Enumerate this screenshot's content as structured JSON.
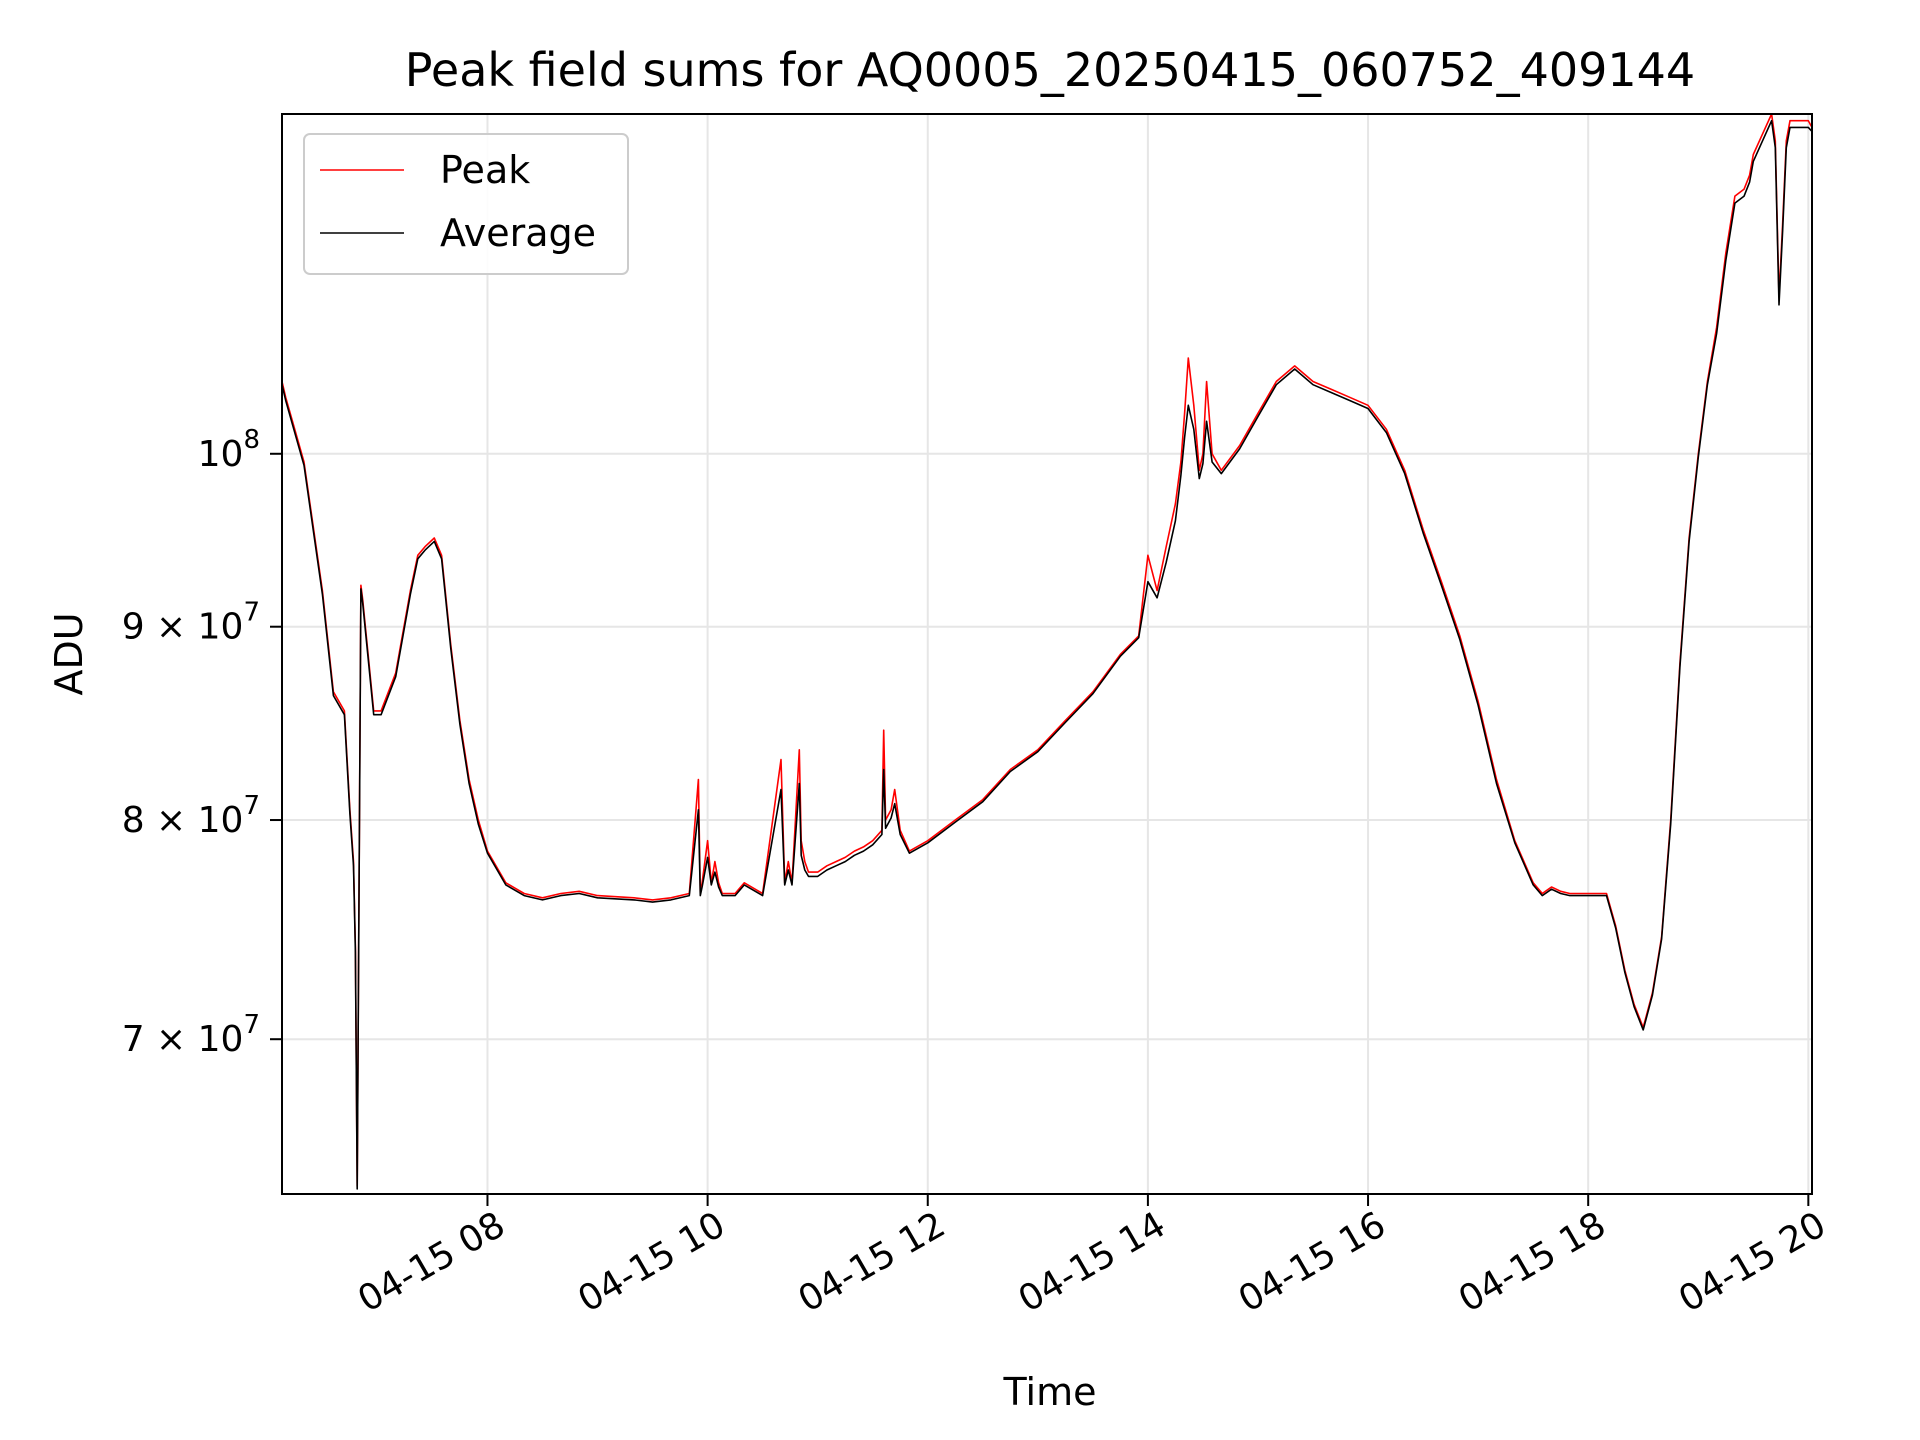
{
  "chart_data": {
    "type": "line",
    "title": "Peak field sums for AQ0005_20250415_060752_409144",
    "xlabel": "Time",
    "ylabel": "ADU",
    "y_scale": "log",
    "xlim": [
      "2025-04-15T06:08",
      "2025-04-15T20:02"
    ],
    "ylim": [
      63700000,
      123000000
    ],
    "grid": true,
    "legend": {
      "placement": "upper-left"
    },
    "x_ticks": [
      {
        "value": "2025-04-15T08:00",
        "label": "04-15 08"
      },
      {
        "value": "2025-04-15T10:00",
        "label": "04-15 10"
      },
      {
        "value": "2025-04-15T12:00",
        "label": "04-15 12"
      },
      {
        "value": "2025-04-15T14:00",
        "label": "04-15 14"
      },
      {
        "value": "2025-04-15T16:00",
        "label": "04-15 16"
      },
      {
        "value": "2025-04-15T18:00",
        "label": "04-15 18"
      },
      {
        "value": "2025-04-15T20:00",
        "label": "04-15 20"
      }
    ],
    "y_ticks": [
      {
        "value": 70000000,
        "mantissa": "7",
        "times": "×",
        "base": "10",
        "exp": "7"
      },
      {
        "value": 80000000,
        "mantissa": "8",
        "times": "×",
        "base": "10",
        "exp": "7"
      },
      {
        "value": 90000000,
        "mantissa": "9",
        "times": "×",
        "base": "10",
        "exp": "7"
      },
      {
        "value": 100000000,
        "mantissa": "",
        "times": "",
        "base": "10",
        "exp": "8"
      }
    ],
    "series": [
      {
        "name": "Peak",
        "color": "#ff0000",
        "x": [
          "2025-04-15T06:08",
          "2025-04-15T06:10",
          "2025-04-15T06:20",
          "2025-04-15T06:30",
          "2025-04-15T06:36",
          "2025-04-15T06:42",
          "06:45",
          "06:47",
          "06:48",
          "06:49",
          "06:51",
          "06:52",
          "06:58",
          "07:02",
          "07:10",
          "07:18",
          "07:22",
          "07:26",
          "07:31",
          "07:35",
          "07:40",
          "07:45",
          "07:50",
          "07:55",
          "08:00",
          "08:10",
          "08:20",
          "08:30",
          "08:40",
          "08:50",
          "09:00",
          "09:20",
          "09:30",
          "09:40",
          "09:50",
          "09:55",
          "09:56",
          "09:57",
          "10:00",
          "10:02",
          "10:04",
          "10:06",
          "10:08",
          "10:10",
          "10:15",
          "10:20",
          "10:30",
          "10:40",
          "10:42",
          "10:44",
          "10:46",
          "10:50",
          "10:51",
          "10:53",
          "10:55",
          "10:58",
          "11:00",
          "11:05",
          "11:10",
          "11:15",
          "11:20",
          "11:25",
          "11:30",
          "11:35",
          "11:36",
          "11:37",
          "11:40",
          "11:42",
          "11:45",
          "11:50",
          "12:00",
          "12:15",
          "12:30",
          "12:45",
          "13:00",
          "13:15",
          "13:30",
          "13:45",
          "13:55",
          "14:00",
          "14:05",
          "14:10",
          "14:15",
          "14:18",
          "14:20",
          "14:22",
          "14:25",
          "14:28",
          "14:30",
          "14:32",
          "14:35",
          "14:40",
          "14:50",
          "15:00",
          "15:10",
          "15:20",
          "15:30",
          "15:40",
          "15:50",
          "16:00",
          "16:10",
          "16:20",
          "16:30",
          "16:40",
          "16:50",
          "17:00",
          "17:10",
          "17:20",
          "17:30",
          "17:35",
          "17:40",
          "17:45",
          "17:50",
          "18:00",
          "18:10",
          "18:15",
          "18:20",
          "18:25",
          "18:30",
          "18:35",
          "18:40",
          "18:45",
          "18:50",
          "18:55",
          "19:00",
          "19:05",
          "19:10",
          "19:15",
          "19:20",
          "19:25",
          "19:28",
          "19:30",
          "19:35",
          "19:40",
          "19:42",
          "19:44",
          "19:46",
          "19:48",
          "19:50",
          "19:55",
          "20:00",
          "20:02"
        ],
        "y": [
          104500000,
          103500000,
          99500000,
          92000000,
          86500000,
          85500000,
          80500000,
          78000000,
          74000000,
          64000000,
          92300000,
          91500000,
          85500000,
          85500000,
          87500000,
          92000000,
          94000000,
          94500000,
          95000000,
          94000000,
          89000000,
          85000000,
          82000000,
          80000000,
          78500000,
          77000000,
          76500000,
          76300000,
          76500000,
          76600000,
          76400000,
          76300000,
          76200000,
          76300000,
          76500000,
          82000000,
          76500000,
          77000000,
          79000000,
          77000000,
          78000000,
          77000000,
          76500000,
          76500000,
          76500000,
          77000000,
          76500000,
          83000000,
          77000000,
          78000000,
          77000000,
          83500000,
          79000000,
          78000000,
          77500000,
          77500000,
          77500000,
          77800000,
          78000000,
          78200000,
          78500000,
          78700000,
          79000000,
          79500000,
          84500000,
          80000000,
          80500000,
          81500000,
          79500000,
          78500000,
          79000000,
          80000000,
          81000000,
          82500000,
          83500000,
          85000000,
          86500000,
          88500000,
          89500000,
          94000000,
          92000000,
          94500000,
          97000000,
          99500000,
          102500000,
          106000000,
          103000000,
          99000000,
          100000000,
          104500000,
          100000000,
          99000000,
          100500000,
          102500000,
          104500000,
          105500000,
          104500000,
          104000000,
          103500000,
          103000000,
          101500000,
          99000000,
          95500000,
          92500000,
          89500000,
          86000000,
          82000000,
          79000000,
          77000000,
          76500000,
          76800000,
          76600000,
          76500000,
          76500000,
          76500000,
          75000000,
          73000000,
          71500000,
          70500000,
          72000000,
          74500000,
          80000000,
          88000000,
          95000000,
          100000000,
          104500000,
          108000000,
          113000000,
          117000000,
          117500000,
          118500000,
          120000000,
          121500000,
          123000000,
          121000000,
          110000000,
          115000000,
          121000000,
          122500000,
          122500000,
          122500000,
          122000000
        ]
      },
      {
        "name": "Average",
        "color": "#000000",
        "x": [
          "2025-04-15T06:08",
          "2025-04-15T06:10",
          "2025-04-15T06:20",
          "2025-04-15T06:30",
          "2025-04-15T06:36",
          "2025-04-15T06:42",
          "06:45",
          "06:47",
          "06:48",
          "06:49",
          "06:51",
          "06:52",
          "06:58",
          "07:02",
          "07:10",
          "07:18",
          "07:22",
          "07:26",
          "07:31",
          "07:35",
          "07:40",
          "07:45",
          "07:50",
          "07:55",
          "08:00",
          "08:10",
          "08:20",
          "08:30",
          "08:40",
          "08:50",
          "09:00",
          "09:20",
          "09:30",
          "09:40",
          "09:50",
          "09:55",
          "09:56",
          "09:57",
          "10:00",
          "10:02",
          "10:04",
          "10:06",
          "10:08",
          "10:10",
          "10:15",
          "10:20",
          "10:30",
          "10:40",
          "10:42",
          "10:44",
          "10:46",
          "10:50",
          "10:51",
          "10:53",
          "10:55",
          "10:58",
          "11:00",
          "11:05",
          "11:10",
          "11:15",
          "11:20",
          "11:25",
          "11:30",
          "11:35",
          "11:36",
          "11:37",
          "11:40",
          "11:42",
          "11:45",
          "11:50",
          "12:00",
          "12:15",
          "12:30",
          "12:45",
          "13:00",
          "13:15",
          "13:30",
          "13:45",
          "13:55",
          "14:00",
          "14:05",
          "14:10",
          "14:15",
          "14:18",
          "14:20",
          "14:22",
          "14:25",
          "14:28",
          "14:30",
          "14:32",
          "14:35",
          "14:40",
          "14:50",
          "15:00",
          "15:10",
          "15:20",
          "15:30",
          "15:40",
          "15:50",
          "16:00",
          "16:10",
          "16:20",
          "16:30",
          "16:40",
          "16:50",
          "17:00",
          "17:10",
          "17:20",
          "17:30",
          "17:35",
          "17:40",
          "17:45",
          "17:50",
          "18:00",
          "18:10",
          "18:15",
          "18:20",
          "18:25",
          "18:30",
          "18:35",
          "18:40",
          "18:45",
          "18:50",
          "18:55",
          "19:00",
          "19:05",
          "19:10",
          "19:15",
          "19:20",
          "19:25",
          "19:28",
          "19:30",
          "19:35",
          "19:40",
          "19:42",
          "19:44",
          "19:46",
          "19:48",
          "19:50",
          "19:55",
          "20:00",
          "20:02"
        ],
        "y": [
          104300000,
          103300000,
          99300000,
          91800000,
          86300000,
          85300000,
          80300000,
          77800000,
          73800000,
          63900000,
          92100000,
          91300000,
          85300000,
          85300000,
          87300000,
          91800000,
          93800000,
          94300000,
          94800000,
          93800000,
          88800000,
          84800000,
          81800000,
          79800000,
          78400000,
          76900000,
          76400000,
          76200000,
          76400000,
          76500000,
          76300000,
          76200000,
          76100000,
          76200000,
          76400000,
          80500000,
          76400000,
          76800000,
          78200000,
          76900000,
          77500000,
          76800000,
          76400000,
          76400000,
          76400000,
          76900000,
          76400000,
          81500000,
          76900000,
          77600000,
          76900000,
          81800000,
          78300000,
          77600000,
          77300000,
          77300000,
          77300000,
          77600000,
          77800000,
          78000000,
          78300000,
          78500000,
          78800000,
          79300000,
          82500000,
          79600000,
          80100000,
          80800000,
          79300000,
          78400000,
          78900000,
          79900000,
          80900000,
          82400000,
          83400000,
          84900000,
          86400000,
          88400000,
          89400000,
          92500000,
          91600000,
          93600000,
          96000000,
          98700000,
          101000000,
          103000000,
          101500000,
          98500000,
          99400000,
          102000000,
          99500000,
          98800000,
          100300000,
          102300000,
          104300000,
          105300000,
          104300000,
          103800000,
          103300000,
          102800000,
          101300000,
          98800000,
          95300000,
          92300000,
          89300000,
          85800000,
          81800000,
          78900000,
          76900000,
          76400000,
          76700000,
          76500000,
          76400000,
          76400000,
          76400000,
          74900000,
          72900000,
          71400000,
          70400000,
          71900000,
          74400000,
          79800000,
          87800000,
          94800000,
          99800000,
          104300000,
          107600000,
          112500000,
          116500000,
          117000000,
          118000000,
          119500000,
          121000000,
          122500000,
          120500000,
          109500000,
          114500000,
          120500000,
          122000000,
          122000000,
          122000000,
          121700000
        ]
      }
    ]
  }
}
